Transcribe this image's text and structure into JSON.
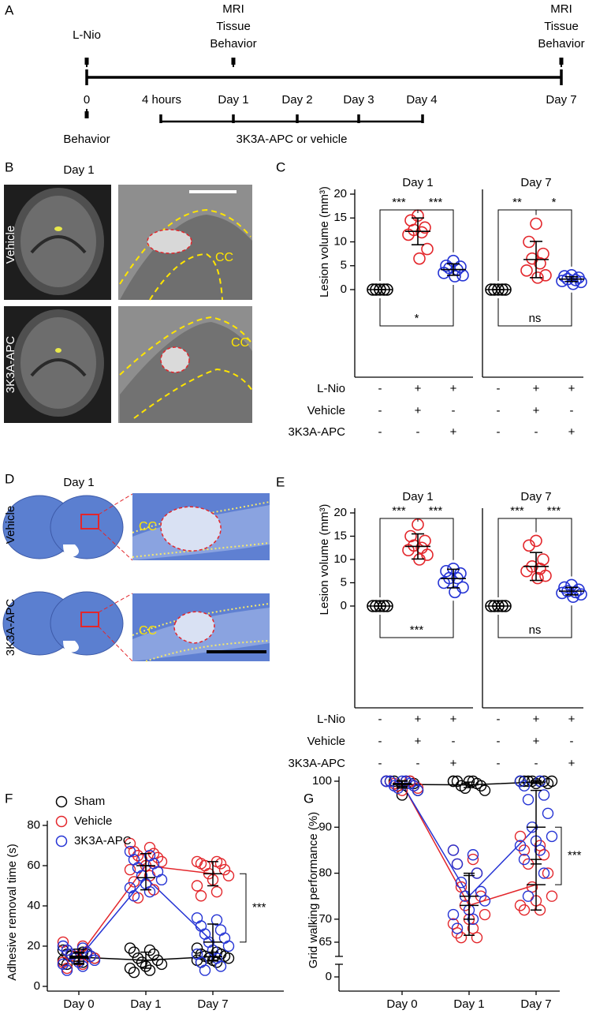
{
  "timeline": {
    "label": "A",
    "start": "L-Nio",
    "top_events": [
      [
        "MRI",
        "Tissue",
        "Behavior"
      ],
      [
        "MRI",
        "Tissue",
        "Behavior"
      ]
    ],
    "times": [
      "0",
      "4 hours",
      "Day 1",
      "Day 2",
      "Day 3",
      "Day 4",
      "Day 7"
    ],
    "baseline": "Behavior",
    "treatment": "3K3A-APC or vehicle"
  },
  "mri": {
    "label": "B",
    "title": "Day 1",
    "rows": [
      "Vehicle",
      "3K3A-APC"
    ],
    "region": "CC"
  },
  "histology": {
    "label": "D",
    "title": "Day 1",
    "rows": [
      "Vehicle",
      "3K3A-APC"
    ],
    "region": "CC"
  },
  "chart_data": [
    {
      "type": "dot",
      "label": "C",
      "ylabel": "Lesion volume (mm³)",
      "ylim": [
        0,
        20
      ],
      "yticks": [
        0,
        5,
        10,
        15,
        20
      ],
      "panels": [
        {
          "title": "Day 1",
          "series": [
            {
              "color": "#000000",
              "values": [
                0,
                0,
                0,
                0,
                0
              ],
              "mean": 0,
              "sd": 0
            },
            {
              "color": "#e3262b",
              "values": [
                15.5,
                14.5,
                13,
                12.5,
                12,
                11.5,
                8.5,
                6.5
              ],
              "mean": 12.2,
              "sd": 2.8
            },
            {
              "color": "#2433d4",
              "values": [
                6,
                5,
                4.8,
                4.5,
                4.2,
                3.5,
                3,
                2.8
              ],
              "mean": 4.2,
              "sd": 1.2
            }
          ],
          "comparisons": [
            {
              "groups": [
                0,
                1
              ],
              "side": "top",
              "label": "***"
            },
            {
              "groups": [
                1,
                2
              ],
              "side": "top",
              "label": "***"
            },
            {
              "groups": [
                0,
                2
              ],
              "side": "bottom",
              "label": "*"
            }
          ]
        },
        {
          "title": "Day 7",
          "series": [
            {
              "color": "#000000",
              "values": [
                0,
                0,
                0,
                0,
                0
              ],
              "mean": 0,
              "sd": 0
            },
            {
              "color": "#e3262b",
              "values": [
                13.8,
                10,
                7.5,
                6.5,
                5.5,
                4,
                3,
                2.5
              ],
              "mean": 6.3,
              "sd": 3.8
            },
            {
              "color": "#2433d4",
              "values": [
                3,
                2.8,
                2.5,
                2.2,
                2,
                1.8,
                1.6,
                1.2
              ],
              "mean": 2.2,
              "sd": 0.5
            }
          ],
          "comparisons": [
            {
              "groups": [
                0,
                1
              ],
              "side": "top",
              "label": "**"
            },
            {
              "groups": [
                1,
                2
              ],
              "side": "top",
              "label": "*"
            },
            {
              "groups": [
                0,
                2
              ],
              "side": "bottom",
              "label": "ns"
            }
          ]
        }
      ],
      "conditions": [
        {
          "name": "L-Nio",
          "signs": [
            "-",
            "+",
            "+"
          ]
        },
        {
          "name": "Vehicle",
          "signs": [
            "-",
            "+",
            "-"
          ]
        },
        {
          "name": "3K3A-APC",
          "signs": [
            "-",
            "-",
            "+"
          ]
        }
      ]
    },
    {
      "type": "dot",
      "label": "E",
      "ylabel": "Lesion volume (mm³)",
      "ylim": [
        0,
        20
      ],
      "yticks": [
        0,
        5,
        10,
        15,
        20
      ],
      "panels": [
        {
          "title": "Day 1",
          "series": [
            {
              "color": "#000000",
              "values": [
                0,
                0,
                0,
                0,
                0
              ],
              "mean": 0,
              "sd": 0
            },
            {
              "color": "#e3262b",
              "values": [
                17.5,
                15,
                14,
                13,
                12.5,
                12,
                11,
                10
              ],
              "mean": 12.8,
              "sd": 2.7
            },
            {
              "color": "#2433d4",
              "values": [
                8,
                7.5,
                7,
                6,
                6,
                5,
                4,
                3
              ],
              "mean": 5.9,
              "sd": 2
            }
          ],
          "comparisons": [
            {
              "groups": [
                0,
                1
              ],
              "side": "top",
              "label": "***"
            },
            {
              "groups": [
                1,
                2
              ],
              "side": "top",
              "label": "***"
            },
            {
              "groups": [
                0,
                2
              ],
              "side": "bottom",
              "label": "***"
            }
          ]
        },
        {
          "title": "Day 7",
          "series": [
            {
              "color": "#000000",
              "values": [
                0,
                0,
                0,
                0,
                0
              ],
              "mean": 0,
              "sd": 0
            },
            {
              "color": "#e3262b",
              "values": [
                14,
                13,
                10,
                8.5,
                8,
                7.5,
                6.5,
                6
              ],
              "mean": 8.5,
              "sd": 3
            },
            {
              "color": "#2433d4",
              "values": [
                4.5,
                4,
                3.5,
                3.2,
                3,
                2.8,
                2.5,
                2
              ],
              "mean": 3.2,
              "sd": 0.8
            }
          ],
          "comparisons": [
            {
              "groups": [
                0,
                1
              ],
              "side": "top",
              "label": "***"
            },
            {
              "groups": [
                1,
                2
              ],
              "side": "top",
              "label": "***"
            },
            {
              "groups": [
                0,
                2
              ],
              "side": "bottom",
              "label": "ns"
            }
          ]
        }
      ],
      "conditions": [
        {
          "name": "L-Nio",
          "signs": [
            "-",
            "+",
            "+"
          ]
        },
        {
          "name": "Vehicle",
          "signs": [
            "-",
            "+",
            "-"
          ]
        },
        {
          "name": "3K3A-APC",
          "signs": [
            "-",
            "-",
            "+"
          ]
        }
      ]
    },
    {
      "type": "line-dot",
      "label": "F",
      "ylabel": "Adhesive removal time (s)",
      "categories": [
        "Day 0",
        "Day 1",
        "Day 7"
      ],
      "ylim": [
        0,
        80
      ],
      "yticks": [
        0,
        20,
        40,
        60,
        80
      ],
      "legend": "top-left",
      "series": [
        {
          "name": "Sham",
          "color": "#000000",
          "points": [
            [
              18,
              17,
              16,
              16,
              15,
              15,
              14,
              14,
              13,
              13,
              12,
              11
            ],
            [
              19,
              18,
              17,
              16,
              14,
              13,
              12,
              11,
              10,
              9,
              8,
              7
            ],
            [
              19,
              17,
              16,
              16,
              15,
              15,
              14,
              14,
              13,
              13,
              12,
              12
            ]
          ],
          "mean": [
            14.5,
            13,
            14.8
          ],
          "sd": [
            2,
            4,
            2.2
          ]
        },
        {
          "name": "Vehicle",
          "color": "#e3262b",
          "points": [
            [
              22,
              20,
              18,
              17,
              16,
              15,
              15,
              14,
              13,
              12,
              11,
              9
            ],
            [
              71,
              69,
              67,
              66,
              65,
              64,
              63,
              62,
              60,
              58,
              55,
              52,
              48,
              44
            ],
            [
              62,
              62,
              61,
              61,
              60,
              58,
              56,
              55,
              53,
              50,
              47,
              45
            ]
          ],
          "mean": [
            15,
            60,
            56
          ],
          "sd": [
            3.5,
            6,
            6
          ]
        },
        {
          "name": "3K3A-APC",
          "color": "#2433d4",
          "points": [
            [
              20,
              19,
              18,
              17,
              16,
              15,
              14,
              13,
              12,
              11,
              10,
              8
            ],
            [
              67,
              65,
              63,
              61,
              59,
              57,
              55,
              53,
              51,
              49,
              47,
              45
            ],
            [
              34,
              33,
              30,
              28,
              26,
              24,
              22,
              20,
              18,
              16,
              14,
              12,
              10,
              8
            ]
          ],
          "mean": [
            14,
            54,
            22
          ],
          "sd": [
            3,
            6,
            9
          ]
        }
      ],
      "comparison": {
        "series": [
          1,
          2
        ],
        "category": 2,
        "label": "***"
      }
    },
    {
      "type": "line-dot",
      "label": "G",
      "ylabel": "Grid walking performance (%)",
      "categories": [
        "Day 0",
        "Day 1",
        "Day 7"
      ],
      "ylim": [
        65,
        100
      ],
      "yticks": [
        0,
        65,
        70,
        80,
        90,
        100
      ],
      "axis_break": true,
      "series": [
        {
          "name": "Sham",
          "color": "#000000",
          "points": [
            [
              100,
              100,
              100,
              100,
              100,
              99.5,
              99,
              98,
              97,
              100
            ],
            [
              100,
              100,
              100,
              99.5,
              99,
              99,
              98.5,
              98,
              100,
              100
            ],
            [
              100,
              100,
              100,
              100,
              100,
              99.5,
              100,
              100,
              99.5,
              100
            ]
          ],
          "mean": [
            99.3,
            99.2,
            99.8
          ],
          "sd": [
            0.8,
            0.6,
            0.3
          ]
        },
        {
          "name": "Vehicle",
          "color": "#e3262b",
          "points": [
            [
              100,
              100,
              100,
              100,
              99.5,
              99,
              99,
              98.5,
              98,
              100
            ],
            [
              85,
              83,
              82,
              80,
              77,
              75,
              73,
              71,
              70,
              69,
              68,
              67,
              66,
              66
            ],
            [
              88,
              86,
              85,
              84,
              82,
              80,
              77,
              75,
              74,
              73,
              72,
              72
            ]
          ],
          "mean": [
            99.5,
            73,
            77.5
          ],
          "sd": [
            0.6,
            6.5,
            5.5
          ]
        },
        {
          "name": "3K3A-APC",
          "color": "#2433d4",
          "points": [
            [
              100,
              100,
              100,
              99.5,
              99,
              99,
              98.5,
              98,
              100,
              100
            ],
            [
              85,
              84,
              82,
              80,
              78,
              76,
              75,
              74,
              72,
              71,
              70,
              68
            ],
            [
              100,
              100,
              99,
              97,
              96,
              93,
              90,
              88,
              87,
              86,
              85,
              83,
              80,
              75
            ]
          ],
          "mean": [
            99.4,
            75,
            90
          ],
          "sd": [
            0.6,
            5,
            8
          ]
        }
      ],
      "comparison": {
        "series": [
          1,
          2
        ],
        "category": 2,
        "label": "***"
      }
    }
  ]
}
